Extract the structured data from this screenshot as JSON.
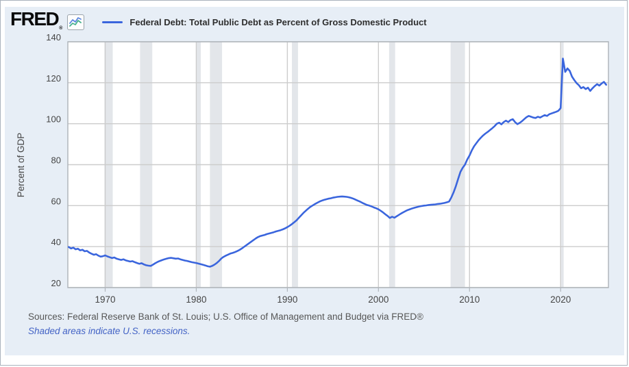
{
  "header": {
    "logo_text": "FRED",
    "logo_reg": "®",
    "sparkline_icon": "sparkline-chart-icon",
    "legend_label": "Federal Debt: Total Public Debt as Percent of Gross Domestic Product"
  },
  "footer": {
    "sources": "Sources: Federal Reserve Bank of St. Louis; U.S. Office of Management and Budget via FRED®",
    "note": "Shaded areas indicate U.S. recessions.",
    "note_color": "#4262c5"
  },
  "colors": {
    "panel_bg": "#e7eef6",
    "plot_bg": "#ffffff",
    "plot_border": "#b0b6bc",
    "gridline": "#cccccc",
    "tick_text": "#444444",
    "line": "#3a65dd",
    "recession": "#e3e6ea",
    "legend_text": "#2e2e2e",
    "sources_text": "#565656"
  },
  "chart_data": {
    "type": "line",
    "title": "Federal Debt: Total Public Debt as Percent of Gross Domestic Product",
    "xlabel": "",
    "ylabel": "Percent of GDP",
    "xlim": [
      1965.9,
      2025.25
    ],
    "ylim": [
      20,
      140
    ],
    "yticks": [
      20,
      40,
      60,
      80,
      100,
      120,
      140
    ],
    "xticks": [
      1970,
      1980,
      1990,
      2000,
      2010,
      2020
    ],
    "grid": true,
    "legend_position": "top",
    "units": "Percent of GDP",
    "frequency": "quarterly",
    "recessions": [
      [
        1969.92,
        1970.83
      ],
      [
        1973.83,
        1975.17
      ],
      [
        1980.0,
        1980.5
      ],
      [
        1981.5,
        1982.83
      ],
      [
        1990.5,
        1991.17
      ],
      [
        2001.17,
        2001.83
      ],
      [
        2007.92,
        2009.5
      ],
      [
        2020.08,
        2020.33
      ]
    ],
    "series": [
      {
        "name": "Federal Debt: Total Public Debt as Percent of Gross Domestic Product",
        "x_start": 1966.0,
        "x_step": 0.25,
        "values": [
          39.8,
          39.1,
          39.5,
          38.7,
          39.0,
          38.2,
          38.5,
          37.7,
          37.9,
          37.1,
          36.5,
          36.0,
          36.3,
          35.6,
          35.1,
          35.3,
          35.7,
          35.2,
          34.8,
          34.4,
          34.7,
          34.1,
          33.8,
          33.5,
          33.8,
          33.3,
          33.0,
          32.7,
          32.9,
          32.4,
          32.0,
          31.6,
          31.9,
          31.3,
          30.9,
          30.7,
          30.6,
          31.2,
          31.9,
          32.5,
          33.0,
          33.4,
          33.8,
          34.1,
          34.4,
          34.5,
          34.3,
          34.1,
          34.2,
          33.8,
          33.5,
          33.2,
          33.0,
          32.7,
          32.4,
          32.2,
          32.0,
          31.7,
          31.4,
          31.1,
          30.8,
          30.4,
          30.2,
          30.6,
          31.2,
          32.0,
          33.0,
          34.2,
          35.0,
          35.6,
          36.1,
          36.6,
          36.9,
          37.3,
          37.8,
          38.4,
          39.1,
          39.9,
          40.7,
          41.5,
          42.3,
          43.1,
          43.9,
          44.6,
          45.1,
          45.4,
          45.7,
          46.1,
          46.4,
          46.7,
          47.0,
          47.4,
          47.7,
          48.0,
          48.4,
          48.9,
          49.5,
          50.2,
          51.0,
          51.9,
          52.8,
          54.0,
          55.2,
          56.4,
          57.4,
          58.4,
          59.3,
          60.0,
          60.7,
          61.3,
          61.9,
          62.4,
          62.8,
          63.1,
          63.4,
          63.6,
          63.9,
          64.1,
          64.3,
          64.4,
          64.5,
          64.4,
          64.3,
          64.1,
          63.8,
          63.4,
          62.9,
          62.4,
          61.9,
          61.3,
          60.8,
          60.3,
          60.0,
          59.6,
          59.1,
          58.7,
          58.2,
          57.5,
          56.7,
          55.8,
          55.0,
          54.0,
          54.6,
          54.1,
          54.8,
          55.5,
          56.2,
          56.8,
          57.4,
          57.9,
          58.3,
          58.7,
          59.0,
          59.3,
          59.6,
          59.8,
          60.0,
          60.1,
          60.3,
          60.4,
          60.5,
          60.6,
          60.8,
          60.9,
          61.1,
          61.3,
          61.6,
          62.0,
          64.0,
          66.5,
          69.5,
          73.0,
          76.5,
          78.5,
          80.0,
          82.5,
          84.5,
          87.0,
          89.0,
          90.5,
          92.0,
          93.2,
          94.3,
          95.2,
          96.0,
          96.9,
          97.8,
          98.8,
          100.0,
          100.5,
          99.7,
          100.8,
          101.5,
          100.8,
          101.8,
          102.2,
          100.8,
          99.8,
          100.4,
          101.2,
          102.2,
          103.2,
          103.8,
          103.4,
          103.0,
          102.8,
          103.4,
          103.0,
          103.6,
          104.2,
          103.8,
          104.6,
          105.0,
          105.4,
          105.8,
          106.3,
          107.6,
          131.8,
          125.3,
          127.0,
          125.8,
          123.0,
          121.3,
          119.8,
          118.8,
          117.3,
          117.9,
          116.9,
          117.6,
          116.0,
          117.3,
          118.4,
          119.3,
          118.6,
          119.6,
          120.4,
          119.0
        ]
      }
    ]
  }
}
